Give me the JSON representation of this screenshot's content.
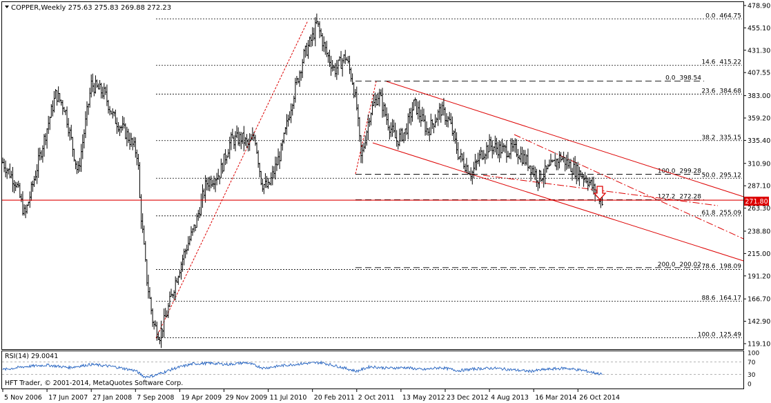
{
  "window": {
    "header": "COPPER,Weekly  275.63 275.83 269.88 272.23",
    "symbol": "COPPER",
    "timeframe": "Weekly",
    "ohlc": [
      275.63,
      275.83,
      269.88,
      272.23
    ]
  },
  "colors": {
    "background": "#ffffff",
    "candle": "#000000",
    "channel": "#dd0000",
    "current_price_line": "#dd0000",
    "price_box": "#dd0000",
    "rsi_line": "#1f5fbf",
    "fib_line": "#000000"
  },
  "price_axis": {
    "ticks": [
      "478.90",
      "455.10",
      "431.30",
      "407.55",
      "383.00",
      "359.20",
      "335.40",
      "310.90",
      "287.10",
      "263.30",
      "238.80",
      "215.00",
      "191.20",
      "166.70",
      "142.90",
      "119.10"
    ],
    "current_price_label": "271.80"
  },
  "time_axis": {
    "labels": [
      "5 Nov 2006",
      "17 Jun 2007",
      "27 Jan 2008",
      "7 Sep 2008",
      "19 Apr 2009",
      "29 Nov 2009",
      "11 Jul 2010",
      "20 Feb 2011",
      "2 Oct 2011",
      "13 May 2012",
      "23 Dec 2012",
      "4 Aug 2013",
      "16 Mar 2014",
      "26 Oct 2014"
    ]
  },
  "fibonacci": {
    "set_1": [
      {
        "pct": "0.0",
        "price": "464.75"
      },
      {
        "pct": "14.6",
        "price": "415.22"
      },
      {
        "pct": "23.6",
        "price": "384.68"
      },
      {
        "pct": "38.2",
        "price": "335.15"
      },
      {
        "pct": "50.0",
        "price": "295.12"
      },
      {
        "pct": "61.8",
        "price": "255.09"
      },
      {
        "pct": "78.6",
        "price": "198.09"
      },
      {
        "pct": "88.6",
        "price": "164.17"
      },
      {
        "pct": "100.0",
        "price": "125.49"
      }
    ],
    "set_2": [
      {
        "pct": "0.0",
        "price": "398.54"
      },
      {
        "pct": "100.0",
        "price": "299.28"
      },
      {
        "pct": "127.2",
        "price": "272.28"
      },
      {
        "pct": "200.0",
        "price": "200.02"
      }
    ]
  },
  "rsi": {
    "label": "RSI(14) 29.0041",
    "ticks": [
      "100",
      "70",
      "30",
      "0"
    ],
    "levels": [
      70,
      30
    ]
  },
  "watermark": "HFT Trader, © 2001-2014, MetaQuotes Software Corp.",
  "chart_data": {
    "type": "candlestick",
    "timeframe": "Weekly",
    "x": [
      "2006-11-05",
      "2007-06-17",
      "2008-01-27",
      "2008-09-07",
      "2009-04-19",
      "2009-11-29",
      "2010-07-11",
      "2011-02-20",
      "2011-10-02",
      "2012-05-13",
      "2012-12-23",
      "2013-08-04",
      "2014-03-16",
      "2014-10-26"
    ],
    "close_path": [
      [
        0.0,
        312
      ],
      [
        0.3,
        290
      ],
      [
        0.5,
        255
      ],
      [
        0.9,
        330
      ],
      [
        1.2,
        385
      ],
      [
        1.4,
        370
      ],
      [
        1.7,
        300
      ],
      [
        2.0,
        395
      ],
      [
        2.3,
        385
      ],
      [
        2.5,
        360
      ],
      [
        2.8,
        342
      ],
      [
        3.05,
        320
      ],
      [
        3.1,
        270
      ],
      [
        3.25,
        190
      ],
      [
        3.4,
        140
      ],
      [
        3.55,
        128
      ],
      [
        3.7,
        150
      ],
      [
        3.9,
        185
      ],
      [
        4.1,
        215
      ],
      [
        4.35,
        245
      ],
      [
        4.6,
        290
      ],
      [
        4.9,
        300
      ],
      [
        5.15,
        335
      ],
      [
        5.4,
        338
      ],
      [
        5.55,
        330
      ],
      [
        5.7,
        340
      ],
      [
        5.85,
        290
      ],
      [
        6.0,
        285
      ],
      [
        6.3,
        325
      ],
      [
        6.55,
        380
      ],
      [
        6.8,
        425
      ],
      [
        7.0,
        445
      ],
      [
        7.1,
        460
      ],
      [
        7.3,
        430
      ],
      [
        7.5,
        410
      ],
      [
        7.75,
        425
      ],
      [
        7.9,
        400
      ],
      [
        8.0,
        370
      ],
      [
        8.1,
        315
      ],
      [
        8.3,
        365
      ],
      [
        8.5,
        385
      ],
      [
        8.7,
        355
      ],
      [
        8.9,
        335
      ],
      [
        9.1,
        345
      ],
      [
        9.3,
        375
      ],
      [
        9.6,
        345
      ],
      [
        9.9,
        368
      ],
      [
        10.1,
        355
      ],
      [
        10.3,
        320
      ],
      [
        10.6,
        300
      ],
      [
        10.8,
        320
      ],
      [
        11.0,
        330
      ],
      [
        11.3,
        325
      ],
      [
        11.6,
        325
      ],
      [
        11.9,
        310
      ],
      [
        12.1,
        295
      ],
      [
        12.35,
        305
      ],
      [
        12.6,
        318
      ],
      [
        12.9,
        305
      ],
      [
        13.2,
        295
      ],
      [
        13.4,
        280
      ],
      [
        13.55,
        272
      ]
    ],
    "rsi_path": [
      [
        0.0,
        45
      ],
      [
        0.5,
        55
      ],
      [
        1.0,
        60
      ],
      [
        1.5,
        52
      ],
      [
        2.0,
        62
      ],
      [
        2.5,
        55
      ],
      [
        3.0,
        42
      ],
      [
        3.2,
        22
      ],
      [
        3.4,
        25
      ],
      [
        3.6,
        35
      ],
      [
        3.9,
        50
      ],
      [
        4.3,
        64
      ],
      [
        4.7,
        66
      ],
      [
        5.1,
        62
      ],
      [
        5.5,
        68
      ],
      [
        5.9,
        50
      ],
      [
        6.3,
        58
      ],
      [
        6.8,
        65
      ],
      [
        7.2,
        68
      ],
      [
        7.6,
        55
      ],
      [
        8.0,
        40
      ],
      [
        8.3,
        55
      ],
      [
        8.7,
        50
      ],
      [
        9.1,
        52
      ],
      [
        9.5,
        45
      ],
      [
        9.9,
        52
      ],
      [
        10.3,
        42
      ],
      [
        10.7,
        48
      ],
      [
        11.1,
        50
      ],
      [
        11.5,
        45
      ],
      [
        11.9,
        40
      ],
      [
        12.3,
        46
      ],
      [
        12.7,
        50
      ],
      [
        13.1,
        43
      ],
      [
        13.55,
        30
      ]
    ],
    "current_price": 271.8,
    "ylim": [
      119.1,
      478.9
    ],
    "rsi_ylim": [
      0,
      100
    ],
    "annotations": [
      "down-arrow"
    ]
  }
}
